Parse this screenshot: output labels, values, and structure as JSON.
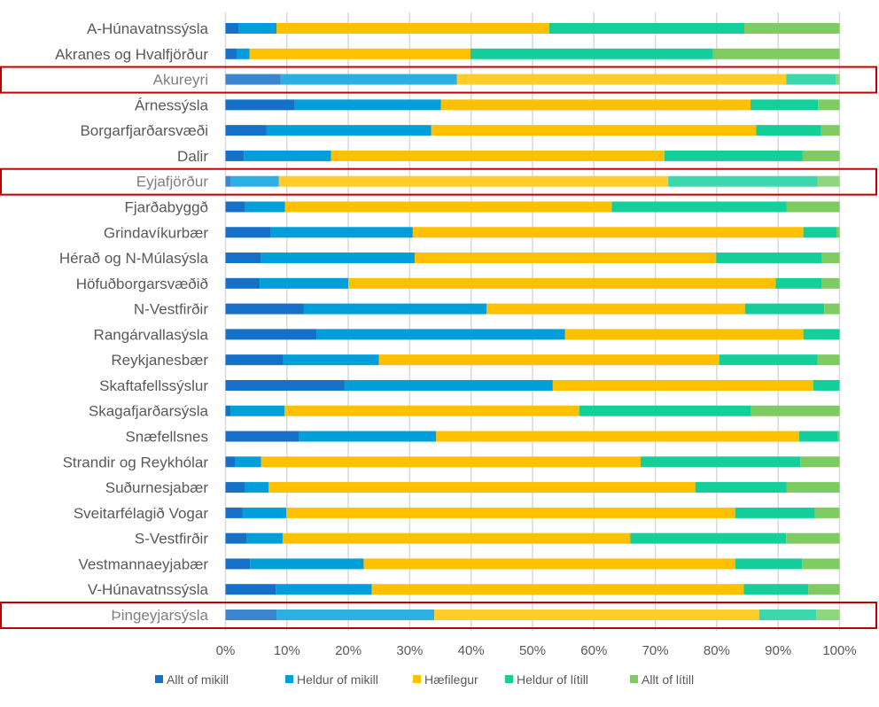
{
  "chart_data": {
    "type": "bar",
    "orientation": "horizontal",
    "stacked": "percent",
    "title": "",
    "xlabel": "",
    "ylabel": "",
    "xlim": [
      0,
      100
    ],
    "grid": true,
    "legend_position": "bottom",
    "x_ticks": [
      "0%",
      "10%",
      "20%",
      "30%",
      "40%",
      "50%",
      "60%",
      "70%",
      "80%",
      "90%",
      "100%"
    ],
    "categories": [
      "A-Húnavatnssýsla",
      "Akranes og Hvalfjörður",
      "Akureyri",
      "Árnessýsla",
      "Borgarfjarðarsvæði",
      "Dalir",
      "Eyjafjörður",
      "Fjarðabyggð",
      "Grindavíkurbær",
      "Hérað og N-Múlasýsla",
      "Höfuðborgarsvæðið",
      "N-Vestfirðir",
      "Rangárvallasýsla",
      "Reykjanesbær",
      "Skaftafellssýslur",
      "Skagafjarðarsýsla",
      "Snæfellsnes",
      "Strandir og Reykhólar",
      "Suðurnesjabær",
      "Sveitarfélagið Vogar",
      "S-Vestfirðir",
      "Vestmannaeyjabær",
      "V-Húnavatnssýsla",
      "Þingeyjarsýsla"
    ],
    "highlighted": [
      "Akureyri",
      "Eyjafjörður",
      "Þingeyjarsýsla"
    ],
    "series": [
      {
        "name": "Allt of mikill",
        "color": "#1470c8",
        "highlight_color": "#3a86d0",
        "values": [
          2.2,
          1.8,
          9.0,
          11.3,
          6.7,
          3.0,
          0.9,
          3.2,
          7.4,
          5.8,
          5.6,
          12.7,
          14.9,
          9.4,
          19.4,
          0.8,
          12.0,
          1.6,
          3.2,
          2.8,
          3.5,
          4.0,
          8.2,
          8.3
        ]
      },
      {
        "name": "Heldur of mikill",
        "color": "#009fdb",
        "highlight_color": "#2cb0e4",
        "values": [
          6.1,
          2.1,
          28.7,
          23.8,
          26.8,
          14.2,
          7.8,
          6.5,
          23.1,
          25.0,
          14.4,
          29.8,
          40.4,
          15.6,
          33.9,
          8.8,
          22.3,
          4.2,
          3.8,
          7.1,
          5.8,
          18.5,
          15.6,
          25.7
        ]
      },
      {
        "name": "Hæfilegur",
        "color": "#ffc000",
        "highlight_color": "#ffcc2a",
        "values": [
          44.4,
          36.0,
          53.6,
          50.4,
          52.9,
          54.3,
          63.4,
          53.2,
          63.6,
          49.1,
          69.6,
          42.1,
          38.8,
          55.4,
          42.4,
          48.0,
          59.1,
          61.8,
          69.5,
          73.1,
          56.6,
          60.5,
          60.6,
          52.9
        ]
      },
      {
        "name": "Heldur of lítill",
        "color": "#14cf9a",
        "highlight_color": "#3ad8ac",
        "values": [
          31.8,
          39.5,
          8.1,
          11.0,
          10.6,
          22.5,
          24.3,
          28.5,
          5.4,
          17.2,
          7.5,
          12.9,
          5.9,
          16.0,
          4.3,
          28.0,
          6.3,
          26.0,
          14.9,
          13.0,
          25.4,
          10.9,
          10.5,
          9.3
        ]
      },
      {
        "name": "Allt of lítill",
        "color": "#7ecb62",
        "highlight_color": "#8fd67c",
        "values": [
          15.5,
          20.6,
          0.6,
          3.5,
          3.0,
          6.0,
          3.6,
          8.6,
          0.5,
          2.9,
          2.9,
          2.5,
          0.0,
          3.6,
          0.0,
          14.4,
          0.3,
          6.4,
          8.6,
          4.0,
          8.7,
          6.1,
          5.1,
          3.8
        ]
      }
    ]
  }
}
